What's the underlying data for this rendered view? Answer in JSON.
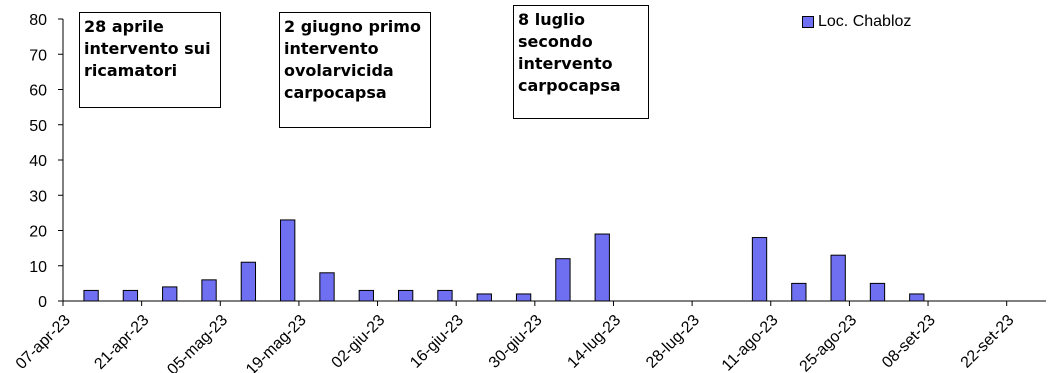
{
  "chart_data": {
    "type": "bar",
    "series": [
      {
        "name": "Loc. Chabloz",
        "color": "#6f6ff2",
        "points": [
          {
            "x": "2023-04-12",
            "y": 3
          },
          {
            "x": "2023-04-19",
            "y": 3
          },
          {
            "x": "2023-04-26",
            "y": 4
          },
          {
            "x": "2023-05-03",
            "y": 6
          },
          {
            "x": "2023-05-10",
            "y": 11
          },
          {
            "x": "2023-05-17",
            "y": 23
          },
          {
            "x": "2023-05-24",
            "y": 8
          },
          {
            "x": "2023-05-31",
            "y": 3
          },
          {
            "x": "2023-06-07",
            "y": 3
          },
          {
            "x": "2023-06-14",
            "y": 3
          },
          {
            "x": "2023-06-21",
            "y": 2
          },
          {
            "x": "2023-06-28",
            "y": 2
          },
          {
            "x": "2023-07-05",
            "y": 12
          },
          {
            "x": "2023-07-12",
            "y": 19
          },
          {
            "x": "2023-08-09",
            "y": 18
          },
          {
            "x": "2023-08-16",
            "y": 5
          },
          {
            "x": "2023-08-23",
            "y": 13
          },
          {
            "x": "2023-08-30",
            "y": 5
          },
          {
            "x": "2023-09-06",
            "y": 2
          }
        ]
      }
    ],
    "x_ticks": [
      "07-apr-23",
      "21-apr-23",
      "05-mag-23",
      "19-mag-23",
      "02-giu-23",
      "16-giu-23",
      "30-giu-23",
      "14-lug-23",
      "28-lug-23",
      "11-ago-23",
      "25-ago-23",
      "08-set-23",
      "22-set-23"
    ],
    "y_ticks": [
      0,
      10,
      20,
      30,
      40,
      50,
      60,
      70,
      80
    ],
    "ylim": [
      0,
      80
    ],
    "xlim": [
      "2023-04-07",
      "2023-09-29"
    ],
    "legend_position": "top-right",
    "annotations": [
      "28 aprile\nintervento sui\nricamatori",
      "2 giugno primo\nintervento\novolarvicida\ncarpocapsa",
      "8 luglio\nsecondo\nintervento\ncarpocapsa"
    ]
  }
}
